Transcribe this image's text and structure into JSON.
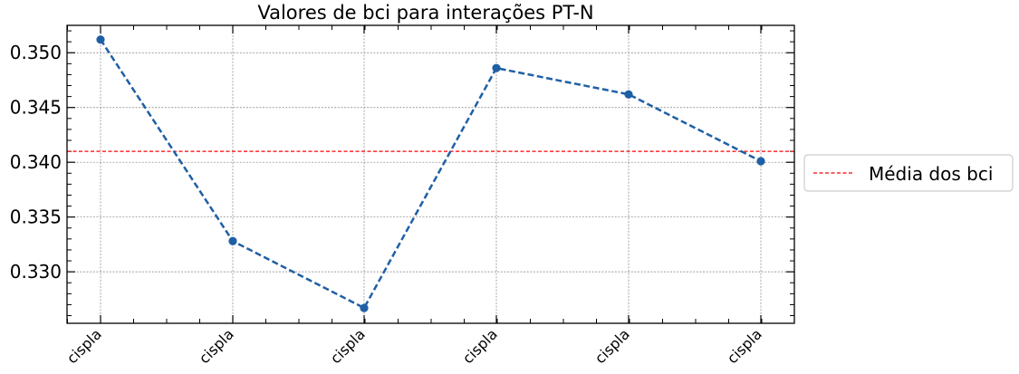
{
  "chart_data": {
    "type": "line",
    "title": "Valores de bci para interações PT-N",
    "xlabel": "",
    "ylabel": "",
    "categories": [
      "cispla",
      "cispla",
      "cispla",
      "cispla",
      "cispla",
      "cispla"
    ],
    "series": [
      {
        "values": [
          0.3512,
          0.3328,
          0.3267,
          0.3486,
          0.3462,
          0.3401
        ],
        "color": "#1f5fa6",
        "line_style": "dashed",
        "marker": "circle"
      }
    ],
    "reference_lines": [
      {
        "name": "Média dos bci",
        "value": 0.341,
        "color": "#ff0000",
        "line_style": "dashed"
      }
    ],
    "ylim": [
      0.3253,
      0.3525
    ],
    "yticks": [
      "0.330",
      "0.335",
      "0.340",
      "0.345",
      "0.350"
    ],
    "ytick_values": [
      0.33,
      0.335,
      0.34,
      0.345,
      0.35
    ],
    "grid": true,
    "legend_position": "right, outside plot area"
  }
}
